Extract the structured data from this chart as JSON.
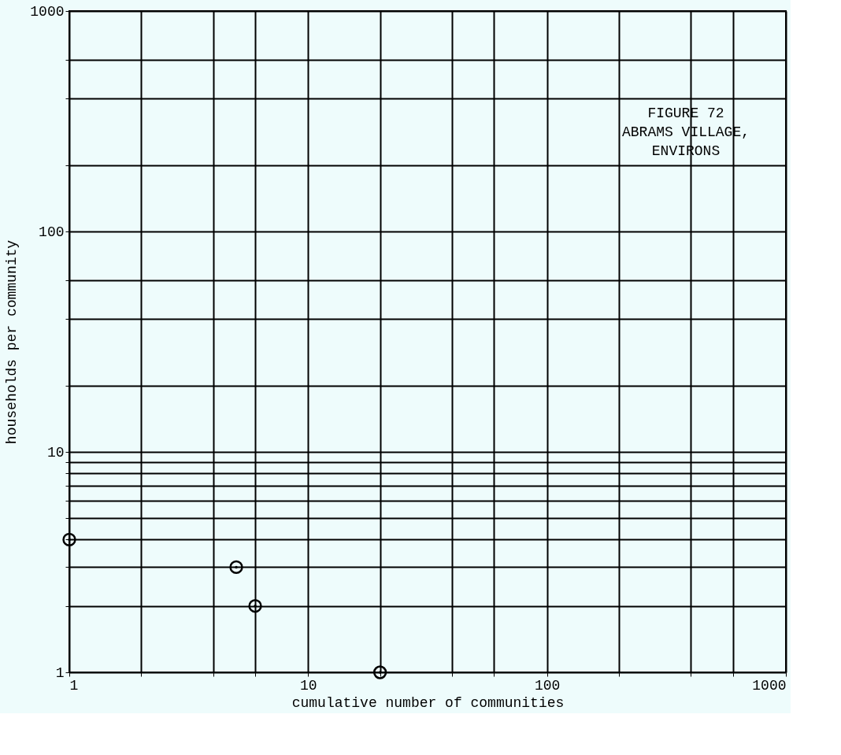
{
  "chart_data": {
    "type": "scatter",
    "title": "FIGURE 72",
    "subtitle": "ABRAMS VILLAGE,\nENVIRONS",
    "xlabel": "cumulative number of communities",
    "ylabel": "households per community",
    "x": [
      1,
      5,
      6,
      20
    ],
    "values": [
      4,
      3,
      2,
      1
    ],
    "color": "#000000",
    "marker": "circle",
    "log": "xy",
    "grid": true,
    "xlim": [
      1,
      1000
    ],
    "ylim": [
      1,
      1000
    ],
    "xticks": [
      1,
      {
        "value": 2,
        "label": null
      },
      {
        "value": 4,
        "label": null
      },
      {
        "value": 6,
        "label": null
      },
      10,
      {
        "value": 20,
        "label": null
      },
      {
        "value": 40,
        "label": null
      },
      {
        "value": 60,
        "label": null
      },
      100,
      {
        "value": 200,
        "label": null
      },
      {
        "value": 400,
        "label": null
      },
      {
        "value": 600,
        "label": null
      },
      1000
    ],
    "yticks": [
      1,
      {
        "value": 2,
        "label": null
      },
      {
        "value": 3,
        "label": null
      },
      {
        "value": 4,
        "label": null
      },
      {
        "value": 5,
        "label": null
      },
      {
        "value": 6,
        "label": null
      },
      {
        "value": 7,
        "label": null
      },
      {
        "value": 8,
        "label": null
      },
      {
        "value": 9,
        "label": null
      },
      10,
      {
        "value": 20,
        "label": null
      },
      {
        "value": 40,
        "label": null
      },
      {
        "value": 60,
        "label": null
      },
      100,
      {
        "value": 200,
        "label": null
      },
      {
        "value": 400,
        "label": null
      },
      {
        "value": 600,
        "label": null
      },
      1000
    ]
  }
}
